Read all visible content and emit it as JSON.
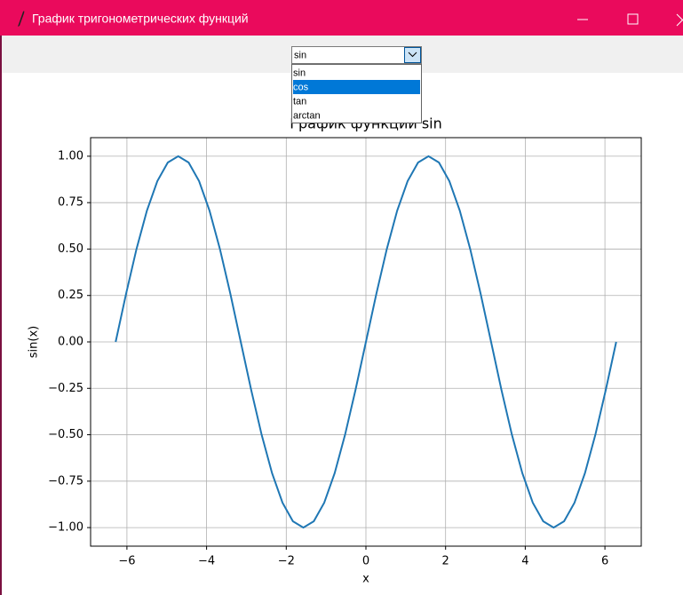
{
  "window": {
    "title": "График тригонометрических функций"
  },
  "combobox": {
    "value": "sin",
    "options": [
      "sin",
      "cos",
      "tan",
      "arctan"
    ],
    "highlighted": 1
  },
  "chart_data": {
    "type": "line",
    "title": "График функции sin",
    "xlabel": "x",
    "ylabel": "sin(x)",
    "x": [
      -6.283,
      -6.021,
      -5.76,
      -5.498,
      -5.236,
      -4.974,
      -4.712,
      -4.451,
      -4.189,
      -3.927,
      -3.665,
      -3.403,
      -3.142,
      -2.88,
      -2.618,
      -2.356,
      -2.094,
      -1.833,
      -1.571,
      -1.309,
      -1.047,
      -0.785,
      -0.524,
      -0.262,
      0,
      0.262,
      0.524,
      0.785,
      1.047,
      1.309,
      1.571,
      1.833,
      2.094,
      2.356,
      2.618,
      2.88,
      3.142,
      3.403,
      3.665,
      3.927,
      4.189,
      4.451,
      4.712,
      4.974,
      5.236,
      5.498,
      5.76,
      6.021,
      6.283
    ],
    "values": [
      0,
      0.259,
      0.5,
      0.707,
      0.866,
      0.966,
      1,
      0.966,
      0.866,
      0.707,
      0.5,
      0.259,
      0,
      -0.259,
      -0.5,
      -0.707,
      -0.866,
      -0.966,
      -1,
      -0.966,
      -0.866,
      -0.707,
      -0.5,
      -0.259,
      0,
      0.259,
      0.5,
      0.707,
      0.866,
      0.966,
      1,
      0.966,
      0.866,
      0.707,
      0.5,
      0.259,
      0,
      -0.259,
      -0.5,
      -0.707,
      -0.866,
      -0.966,
      -1,
      -0.966,
      -0.866,
      -0.707,
      -0.5,
      -0.259,
      0
    ],
    "color": "#1f77b4",
    "xlim": [
      -6.912,
      6.912
    ],
    "ylim": [
      -1.1,
      1.1
    ],
    "xticks": [
      {
        "value": -6,
        "label": "−6"
      },
      {
        "value": -4,
        "label": "−4"
      },
      {
        "value": -2,
        "label": "−2"
      },
      0,
      2,
      4,
      6
    ],
    "yticks": [
      {
        "value": -1,
        "label": "−1.00"
      },
      {
        "value": -0.75,
        "label": "−0.75"
      },
      {
        "value": -0.5,
        "label": "−0.50"
      },
      {
        "value": -0.25,
        "label": "−0.25"
      },
      {
        "value": 0,
        "label": "0.00"
      },
      {
        "value": 0.25,
        "label": "0.25"
      },
      {
        "value": 0.5,
        "label": "0.50"
      },
      {
        "value": 0.75,
        "label": "0.75"
      },
      {
        "value": 1,
        "label": "1.00"
      }
    ],
    "grid": true
  }
}
